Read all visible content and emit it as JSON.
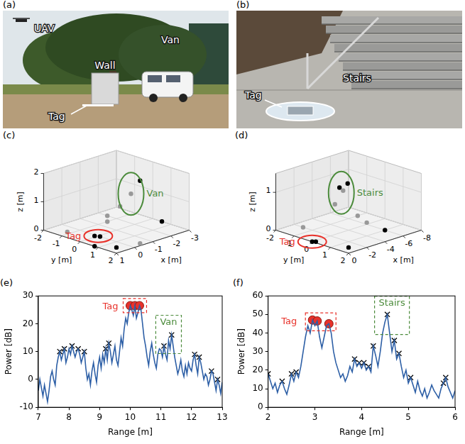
{
  "photos": [
    {
      "panel": "(a)",
      "labels": [
        "UAV",
        "Wall",
        "Van",
        "Tag"
      ]
    },
    {
      "panel": "(b)",
      "labels": [
        "Stairs",
        "Tag"
      ]
    }
  ],
  "chart_data": [
    {
      "panel": "(c)",
      "type": "scatter3d",
      "x": [
        0,
        0.1,
        -2.0,
        -1.6,
        -1.2,
        0.5,
        -0.5,
        1.0,
        -2.0,
        -3.0,
        0.5,
        -1.0
      ],
      "y": [
        0.1,
        -0.1,
        0.3,
        0.2,
        0.0,
        1.5,
        1.8,
        0.8,
        -1.5,
        0.5,
        -1.2,
        -0.5
      ],
      "z": [
        0,
        0,
        1.6,
        1.2,
        0.8,
        0,
        0,
        0,
        0,
        0,
        0,
        0.2
      ],
      "colors": [
        "#000000",
        "#000000",
        "#000000",
        "#999999",
        "#999999",
        "#000000",
        "#999999",
        "#000000",
        "#999999",
        "#000000",
        "#999999",
        "#999999"
      ],
      "xlim": [
        -3,
        1
      ],
      "xticks": [
        -3,
        -2,
        -1,
        0,
        1
      ],
      "ylim": [
        -2,
        2
      ],
      "yticks": [
        -2,
        -1,
        0,
        1,
        2
      ],
      "zlim": [
        0,
        2
      ],
      "zticks": [
        0,
        1,
        2
      ],
      "x_label": "x [m]",
      "y_label": "y [m]",
      "z_label": "z [m]",
      "grid": true,
      "annotations": [
        {
          "text": "Tag",
          "x": 0,
          "y": 0,
          "z": 0,
          "color": "#e8322b"
        },
        {
          "text": "Van",
          "x": -1.6,
          "y": 0.2,
          "z": 1.2,
          "color": "#4b8b3b"
        }
      ]
    },
    {
      "panel": "(d)",
      "type": "scatter3d",
      "x": [
        0,
        -0.2,
        -3.0,
        -3.5,
        -2.5,
        -4.0,
        -6,
        -7,
        -1,
        -2,
        -5
      ],
      "y": [
        0,
        0.1,
        0,
        0.2,
        0,
        -0.3,
        1,
        -1,
        1.5,
        -1.5,
        0.5
      ],
      "z": [
        0,
        0,
        1.2,
        1.3,
        0.8,
        1.0,
        0,
        0,
        0,
        0,
        0.2
      ],
      "colors": [
        "#000000",
        "#000000",
        "#000000",
        "#000000",
        "#999999",
        "#999999",
        "#000000",
        "#999999",
        "#000000",
        "#999999",
        "#999999"
      ],
      "xlim": [
        -8,
        0
      ],
      "xticks": [
        -8,
        -6,
        -4,
        -2,
        0
      ],
      "ylim": [
        -2,
        2
      ],
      "yticks": [
        -2,
        -1,
        0,
        1,
        2
      ],
      "zlim": [
        0,
        1.5
      ],
      "zticks": [
        0,
        1
      ],
      "x_label": "x [m]",
      "y_label": "y [m]",
      "z_label": "z [m]",
      "grid": true,
      "annotations": [
        {
          "text": "Tag",
          "x": 0,
          "y": 0,
          "z": 0,
          "color": "#e8322b"
        },
        {
          "text": "Stairs",
          "x": -3.2,
          "y": 0,
          "z": 1.05,
          "color": "#4b8b3b"
        }
      ]
    },
    {
      "panel": "(e)",
      "type": "line",
      "x_label": "Range [m]",
      "y_label": "Power [dB]",
      "xlim": [
        7,
        13
      ],
      "xticks": [
        7,
        8,
        9,
        10,
        11,
        12,
        13
      ],
      "ylim": [
        -10,
        30
      ],
      "yticks": [
        -10,
        0,
        10,
        20,
        30
      ],
      "grid": false,
      "x": [
        7,
        7.05,
        7.1,
        7.15,
        7.2,
        7.25,
        7.3,
        7.35,
        7.4,
        7.45,
        7.5,
        7.55,
        7.6,
        7.65,
        7.7,
        7.75,
        7.8,
        7.85,
        7.9,
        7.95,
        8,
        8.05,
        8.1,
        8.15,
        8.2,
        8.25,
        8.3,
        8.35,
        8.4,
        8.45,
        8.5,
        8.55,
        8.6,
        8.65,
        8.7,
        8.75,
        8.8,
        8.85,
        8.9,
        8.95,
        9,
        9.05,
        9.1,
        9.15,
        9.2,
        9.25,
        9.3,
        9.35,
        9.4,
        9.45,
        9.5,
        9.55,
        9.6,
        9.65,
        9.7,
        9.75,
        9.8,
        9.85,
        9.9,
        9.95,
        10,
        10.05,
        10.1,
        10.15,
        10.2,
        10.25,
        10.3,
        10.35,
        10.4,
        10.45,
        10.5,
        10.55,
        10.6,
        10.65,
        10.7,
        10.75,
        10.8,
        10.85,
        10.9,
        10.95,
        11,
        11.05,
        11.1,
        11.15,
        11.2,
        11.25,
        11.3,
        11.35,
        11.4,
        11.45,
        11.5,
        11.55,
        11.6,
        11.65,
        11.7,
        11.75,
        11.8,
        11.85,
        11.9,
        11.95,
        12,
        12.05,
        12.1,
        12.15,
        12.2,
        12.25,
        12.3,
        12.35,
        12.4,
        12.45,
        12.5,
        12.55,
        12.6,
        12.65,
        12.7,
        12.75,
        12.8,
        12.85,
        12.9,
        12.95,
        13
      ],
      "series": [
        {
          "type": "line",
          "color": "#2d5fa6",
          "values": [
            -4,
            0,
            -3,
            -6,
            -2,
            -5,
            -8,
            -4,
            1,
            3,
            0,
            -2,
            5,
            8,
            10,
            7,
            9,
            11,
            6,
            8,
            11,
            9,
            12,
            10,
            8,
            10,
            11,
            9,
            6,
            8,
            10,
            4,
            0,
            2,
            -2,
            3,
            6,
            2,
            -1,
            5,
            8,
            4,
            9,
            6,
            11,
            7,
            13,
            10,
            6,
            9,
            12,
            7,
            5,
            10,
            15,
            12,
            18,
            22,
            20,
            24,
            26.5,
            25,
            23,
            26.5,
            22,
            24,
            26.5,
            25,
            20,
            15,
            12,
            8,
            5,
            10,
            13,
            9,
            6,
            4,
            9,
            11,
            10.5,
            8,
            12,
            9,
            7,
            14,
            11,
            16,
            12,
            8,
            5,
            2,
            4,
            7,
            3,
            1,
            5,
            2,
            6,
            4,
            3,
            7,
            9,
            5,
            2,
            8,
            6,
            3,
            0,
            2,
            1,
            -2,
            0,
            3,
            2,
            -1,
            -4,
            0,
            -2,
            -5,
            -1
          ]
        },
        {
          "type": "scatter",
          "marker": "x",
          "color": "#000000",
          "x": [
            7.7,
            7.85,
            8.1,
            8.3,
            8.5,
            9.2,
            9.3,
            11.1,
            11.35,
            12.1,
            12.25,
            12.65,
            12.85
          ],
          "values": [
            10,
            11,
            12,
            11,
            10,
            11,
            13,
            12,
            16,
            9,
            8,
            3,
            0
          ]
        },
        {
          "type": "scatter",
          "marker": "circle",
          "color": "#e8322b",
          "x": [
            10,
            10.15,
            10.3
          ],
          "values": [
            26.5,
            26.5,
            26.5
          ]
        }
      ],
      "annotations": [
        {
          "text": "Tag",
          "x": 9.35,
          "y": 26,
          "color": "#e8322b"
        },
        {
          "text": "Van",
          "x": 11.25,
          "y": 20.5,
          "color": "#4b8b3b"
        }
      ]
    },
    {
      "panel": "(f)",
      "type": "line",
      "x_label": "Range [m]",
      "y_label": "Power [dB]",
      "xlim": [
        2,
        6
      ],
      "xticks": [
        2,
        3,
        4,
        5,
        6
      ],
      "ylim": [
        0,
        60
      ],
      "yticks": [
        0,
        10,
        20,
        30,
        40,
        50,
        60
      ],
      "grid": false,
      "x": [
        2,
        2.05,
        2.1,
        2.15,
        2.2,
        2.25,
        2.3,
        2.35,
        2.4,
        2.45,
        2.5,
        2.55,
        2.6,
        2.65,
        2.7,
        2.75,
        2.8,
        2.85,
        2.9,
        2.95,
        3,
        3.05,
        3.1,
        3.15,
        3.2,
        3.25,
        3.3,
        3.35,
        3.4,
        3.45,
        3.5,
        3.55,
        3.6,
        3.65,
        3.7,
        3.75,
        3.8,
        3.85,
        3.9,
        3.95,
        4,
        4.05,
        4.1,
        4.15,
        4.2,
        4.25,
        4.3,
        4.35,
        4.4,
        4.45,
        4.5,
        4.55,
        4.6,
        4.65,
        4.7,
        4.75,
        4.8,
        4.85,
        4.9,
        4.95,
        5,
        5.05,
        5.1,
        5.15,
        5.2,
        5.25,
        5.3,
        5.35,
        5.4,
        5.45,
        5.5,
        5.55,
        5.6,
        5.65,
        5.7,
        5.75,
        5.8,
        5.85,
        5.9,
        5.95,
        6
      ],
      "series": [
        {
          "type": "line",
          "color": "#2d5fa6",
          "values": [
            18,
            14,
            10,
            13,
            8,
            12,
            14,
            10,
            7,
            12,
            18,
            14,
            19,
            16,
            22,
            30,
            38,
            44,
            40,
            47,
            44,
            46.5,
            38,
            32,
            38,
            44,
            45,
            40,
            30,
            24,
            20,
            16,
            18,
            14,
            17,
            22,
            19,
            26,
            22,
            24,
            21,
            24,
            20,
            22,
            19,
            33,
            28,
            22,
            30,
            40,
            46,
            50,
            40,
            30,
            36,
            26,
            29,
            22,
            16,
            20,
            13,
            16,
            12,
            8,
            14,
            9,
            6,
            10,
            5,
            8,
            12,
            9,
            7,
            5,
            10,
            13,
            16,
            11,
            8,
            5,
            9
          ]
        },
        {
          "type": "scatter",
          "marker": "x",
          "color": "#000000",
          "x": [
            2.0,
            2.3,
            2.5,
            2.6,
            3.85,
            3.95,
            4.05,
            4.15,
            4.25,
            4.55,
            4.7,
            4.8,
            5.05,
            5.75,
            5.8
          ],
          "values": [
            18,
            14,
            18,
            19,
            26,
            24,
            24,
            22,
            33,
            50,
            36,
            29,
            16,
            13,
            16
          ]
        },
        {
          "type": "scatter",
          "marker": "circle",
          "color": "#e8322b",
          "x": [
            2.95,
            3.05,
            3.3
          ],
          "values": [
            47,
            46.5,
            45
          ]
        }
      ],
      "annotations": [
        {
          "text": "Tag",
          "x": 2.45,
          "y": 46,
          "color": "#e8322b"
        },
        {
          "text": "Stairs",
          "x": 4.65,
          "y": 56,
          "color": "#4b8b3b"
        }
      ]
    }
  ]
}
